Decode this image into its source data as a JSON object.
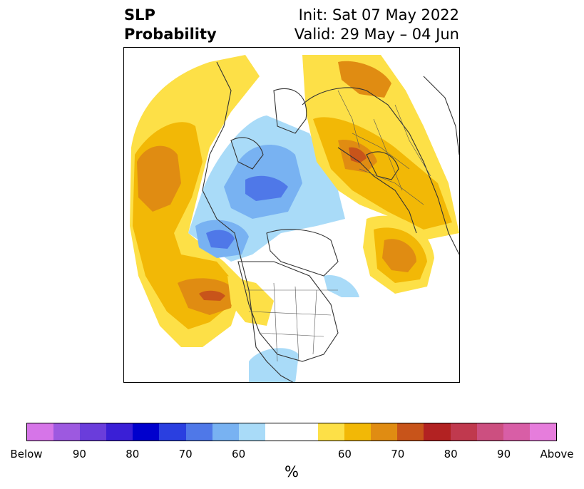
{
  "title": {
    "left_line1": "SLP",
    "left_line2": "Probability",
    "right_line1": "Init: Sat 07 May 2022",
    "right_line2": "Valid: 29 May – 04 Jun"
  },
  "colorbar": {
    "colors": [
      "#d675e8",
      "#9d59e0",
      "#6a3ddb",
      "#3a1fd6",
      "#0000cd",
      "#2a3fe0",
      "#4f78e8",
      "#78b2f2",
      "#a9dbf8",
      "#ffffff",
      "#ffffff",
      "#fde047",
      "#f2b806",
      "#e08c12",
      "#c8541a",
      "#b22222",
      "#c0394e",
      "#cc4f80",
      "#d85ea6",
      "#e67ddc"
    ],
    "tick_labels": [
      "Below",
      "90",
      "80",
      "70",
      "60",
      "60",
      "70",
      "80",
      "90",
      "Above"
    ],
    "unit_label": "%"
  },
  "map": {
    "projection": "north-polar-stereographic",
    "palette": {
      "yellow": "#fde047",
      "gold": "#f2b806",
      "orange": "#e08c12",
      "red_orange": "#c8541a",
      "light_blue": "#a9dbf8",
      "mid_blue": "#78b2f2",
      "blue": "#4f78e8",
      "coast": "#333333"
    }
  }
}
